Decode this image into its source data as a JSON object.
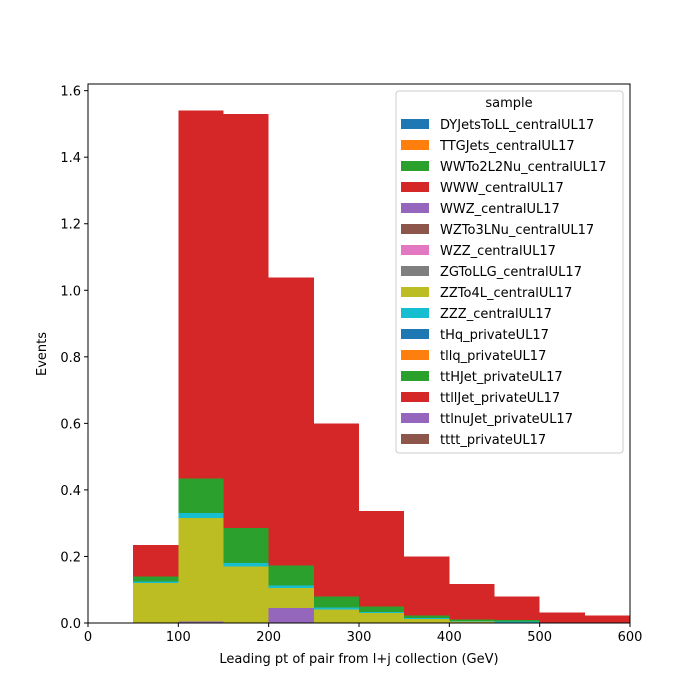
{
  "chart_data": {
    "type": "bar",
    "stacked": true,
    "histogram": true,
    "bin_edges": [
      50,
      100,
      150,
      200,
      250,
      300,
      350,
      400,
      450,
      500,
      550,
      600
    ],
    "xlabel": "Leading pt of pair from l+j collection (GeV)",
    "ylabel": "Events",
    "xlim": [
      0,
      600
    ],
    "ylim": [
      0,
      1.62
    ],
    "xticks": [
      0,
      100,
      200,
      300,
      400,
      500,
      600
    ],
    "yticks": [
      0.0,
      0.2,
      0.4,
      0.6,
      0.8,
      1.0,
      1.2,
      1.4,
      1.6
    ],
    "xtick_labels": [
      "0",
      "100",
      "200",
      "300",
      "400",
      "500",
      "600"
    ],
    "ytick_labels": [
      "0.0",
      "0.2",
      "0.4",
      "0.6",
      "0.8",
      "1.0",
      "1.2",
      "1.4",
      "1.6"
    ],
    "grid": false,
    "legend": {
      "title": "sample",
      "placement": "top-right"
    },
    "series": [
      {
        "name": "DYJetsToLL_centralUL17",
        "color": "#1f77b4",
        "values": [
          0,
          0,
          0,
          0,
          0,
          0,
          0,
          0,
          0,
          0,
          0
        ]
      },
      {
        "name": "TTGJets_centralUL17",
        "color": "#ff7f0e",
        "values": [
          0,
          0,
          0,
          0,
          0,
          0,
          0,
          0,
          0,
          0,
          0
        ]
      },
      {
        "name": "WWTo2L2Nu_centralUL17",
        "color": "#2ca02c",
        "values": [
          0,
          0,
          0,
          0,
          0,
          0,
          0,
          0,
          0,
          0,
          0
        ]
      },
      {
        "name": "WWW_centralUL17",
        "color": "#d62728",
        "values": [
          0,
          0,
          0,
          0,
          0,
          0,
          0,
          0,
          0,
          0,
          0
        ]
      },
      {
        "name": "WWZ_centralUL17",
        "color": "#9467bd",
        "values": [
          0,
          0.005,
          0,
          0.045,
          0,
          0,
          0,
          0,
          0,
          0,
          0
        ]
      },
      {
        "name": "WZTo3LNu_centralUL17",
        "color": "#8c564b",
        "values": [
          0,
          0,
          0,
          0,
          0,
          0,
          0,
          0,
          0,
          0,
          0
        ]
      },
      {
        "name": "WZZ_centralUL17",
        "color": "#e377c2",
        "values": [
          0,
          0,
          0,
          0,
          0,
          0,
          0,
          0,
          0,
          0,
          0
        ]
      },
      {
        "name": "ZGToLLG_centralUL17",
        "color": "#7f7f7f",
        "values": [
          0,
          0,
          0,
          0,
          0,
          0,
          0,
          0,
          0,
          0,
          0
        ]
      },
      {
        "name": "ZZTo4L_centralUL17",
        "color": "#bcbd22",
        "values": [
          0.12,
          0.31,
          0.17,
          0.06,
          0.04,
          0.03,
          0.012,
          0.004,
          0.002,
          0,
          0
        ]
      },
      {
        "name": "ZZZ_centralUL17",
        "color": "#17becf",
        "values": [
          0.005,
          0.015,
          0.01,
          0.008,
          0.006,
          0.003,
          0.003,
          0.002,
          0.003,
          0,
          0
        ]
      },
      {
        "name": "tHq_privateUL17",
        "color": "#1f77b4",
        "values": [
          0,
          0,
          0,
          0,
          0,
          0,
          0,
          0,
          0,
          0,
          0
        ]
      },
      {
        "name": "tllq_privateUL17",
        "color": "#ff7f0e",
        "values": [
          0,
          0,
          0,
          0,
          0,
          0,
          0,
          0,
          0,
          0,
          0
        ]
      },
      {
        "name": "ttHJet_privateUL17",
        "color": "#2ca02c",
        "values": [
          0.015,
          0.105,
          0.105,
          0.06,
          0.033,
          0.017,
          0.008,
          0.004,
          0.004,
          0,
          0
        ]
      },
      {
        "name": "ttllJet_privateUL17",
        "color": "#d62728",
        "values": [
          0.095,
          1.105,
          1.245,
          0.865,
          0.52,
          0.287,
          0.177,
          0.107,
          0.071,
          0.032,
          0.022
        ]
      },
      {
        "name": "ttlnuJet_privateUL17",
        "color": "#9467bd",
        "values": [
          0,
          0,
          0,
          0,
          0,
          0,
          0,
          0,
          0,
          0,
          0
        ]
      },
      {
        "name": "tttt_privateUL17",
        "color": "#8c564b",
        "values": [
          0,
          0,
          0,
          0,
          0,
          0,
          0,
          0,
          0,
          0,
          0
        ]
      }
    ]
  }
}
